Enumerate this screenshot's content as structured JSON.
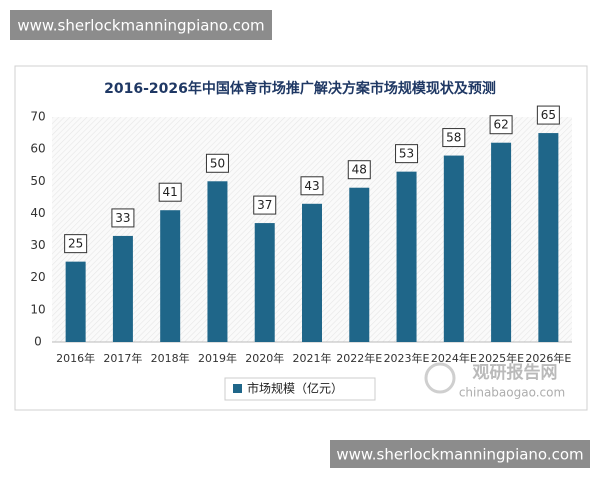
{
  "chart_data": {
    "type": "bar",
    "title": "2016-2026年中国体育市场推广解决方案市场规模现状及预测",
    "categories": [
      "2016年",
      "2017年",
      "2018年",
      "2019年",
      "2020年",
      "2021年",
      "2022年E",
      "2023年E",
      "2024年E",
      "2025年E",
      "2026年E"
    ],
    "series": [
      {
        "name": "市场规模（亿元）",
        "color": "#1f6689",
        "values": [
          25,
          33,
          41,
          50,
          37,
          43,
          48,
          53,
          58,
          62,
          65
        ]
      }
    ],
    "ylim": [
      0,
      70
    ],
    "yticks": [
      0,
      10,
      20,
      30,
      40,
      50,
      60,
      70
    ],
    "legend": "bottom"
  },
  "watermarks": {
    "top": "www.sherlockmanningpiano.com",
    "bottom": "www.sherlockmanningpiano.com",
    "logo_cn": "观研报告网",
    "logo_en": "chinabaogao.com"
  }
}
